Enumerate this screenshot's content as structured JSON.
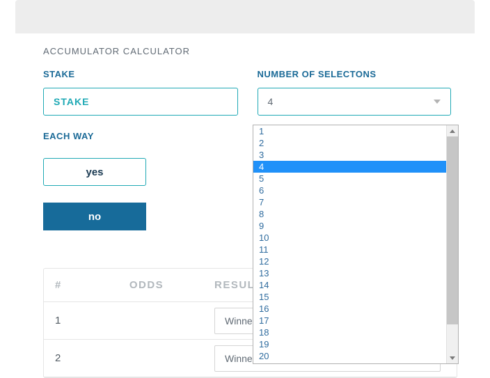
{
  "title": "ACCUMULATOR CALCULATOR",
  "labels": {
    "stake": "STAKE",
    "selections": "NUMBER OF SELECTONS",
    "eachway": "EACH WAY"
  },
  "stake": {
    "placeholder": "STAKE"
  },
  "selections": {
    "current": "4",
    "options": [
      "1",
      "2",
      "3",
      "4",
      "5",
      "6",
      "7",
      "8",
      "9",
      "10",
      "11",
      "12",
      "13",
      "14",
      "15",
      "16",
      "17",
      "18",
      "19",
      "20"
    ],
    "selected_index": 3
  },
  "eachway": {
    "yes": "yes",
    "no": "no"
  },
  "table": {
    "headers": {
      "num": "#",
      "odds": "ODDS",
      "result": "RESULT"
    },
    "rows": [
      {
        "num": "1",
        "result": "Winner"
      },
      {
        "num": "2",
        "result": "Winner"
      }
    ]
  },
  "colors": {
    "teal": "#1fa9b5",
    "dark_blue": "#176b9a",
    "label_blue": "#1b6a97",
    "text_gray": "#606a74",
    "header_gray": "#b2b8bd",
    "dropdown_text": "#2e6b9e",
    "highlight": "#2091f9"
  }
}
